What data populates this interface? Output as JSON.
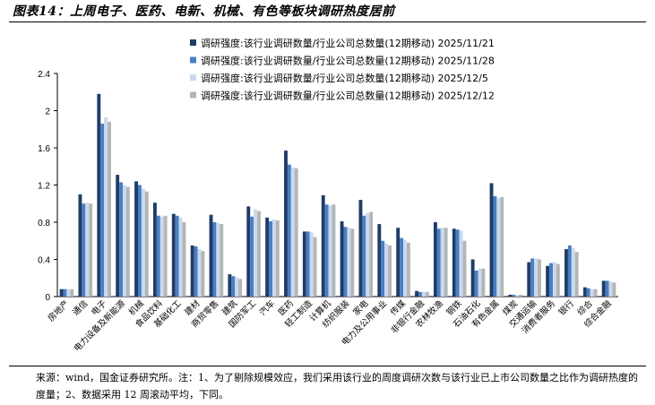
{
  "title": "图表14：上周电子、医药、电新、机械、有色等板块调研热度居前",
  "source": "来源：wind，国金证券研究所。注：1、为了剔除规模效应，我们采用该行业的周度调研次数与该行业已上市公司数量之比作为调研热度的度量；2、数据采用 12 周滚动平均，下同。",
  "chart_data": {
    "type": "bar",
    "ylim": [
      0,
      2.4
    ],
    "yticks": [
      "0",
      "0.4",
      "0.8",
      "1.2",
      "1.6",
      "2",
      "2.4"
    ],
    "legend_position": "top",
    "categories": [
      "房地产",
      "通信",
      "电子",
      "电力设备及新能源",
      "机械",
      "食品饮料",
      "基础化工",
      "建材",
      "商贸零售",
      "建筑",
      "国防军工",
      "汽车",
      "医药",
      "轻工制造",
      "计算机",
      "纺织服装",
      "家电",
      "电力及公用事业",
      "传媒",
      "非银行金融",
      "农林牧渔",
      "钢铁",
      "石油石化",
      "有色金属",
      "煤炭",
      "交通运输",
      "消费者服务",
      "银行",
      "综合",
      "综合金融"
    ],
    "series": [
      {
        "name": "调研强度:该行业调研数量/行业公司总数量(12期移动) 2025/11/21",
        "color": "#1f3d66",
        "values": [
          0.08,
          1.1,
          2.18,
          1.31,
          1.24,
          1.01,
          0.89,
          0.55,
          0.88,
          0.24,
          0.97,
          0.85,
          1.57,
          0.7,
          1.09,
          0.81,
          1.04,
          0.78,
          0.74,
          0.06,
          0.8,
          0.73,
          0.4,
          1.22,
          0.02,
          0.37,
          0.33,
          0.51,
          0.1,
          0.17
        ]
      },
      {
        "name": "调研强度:该行业调研数量/行业公司总数量(12期移动) 2025/11/28",
        "color": "#4a7ec2",
        "values": [
          0.08,
          1.0,
          1.86,
          1.23,
          1.2,
          0.87,
          0.87,
          0.54,
          0.8,
          0.22,
          0.86,
          0.81,
          1.42,
          0.7,
          0.99,
          0.75,
          0.87,
          0.6,
          0.63,
          0.05,
          0.73,
          0.72,
          0.28,
          1.08,
          0.02,
          0.41,
          0.36,
          0.55,
          0.09,
          0.17
        ]
      },
      {
        "name": "调研强度:该行业调研数量/行业公司总数量(12期移动) 2025/12/5",
        "color": "#c9daf0",
        "values": [
          0.08,
          1.01,
          1.93,
          1.2,
          1.16,
          0.86,
          0.85,
          0.51,
          0.79,
          0.21,
          0.94,
          0.83,
          1.39,
          0.69,
          0.98,
          0.74,
          0.9,
          0.57,
          0.61,
          0.05,
          0.74,
          0.71,
          0.3,
          1.06,
          0.02,
          0.41,
          0.37,
          0.52,
          0.08,
          0.16
        ]
      },
      {
        "name": "调研强度:该行业调研数量/行业公司总数量(12期移动) 2025/12/12",
        "color": "#b5b5b5",
        "values": [
          0.08,
          1.0,
          1.88,
          1.18,
          1.13,
          0.87,
          0.8,
          0.49,
          0.78,
          0.19,
          0.92,
          0.82,
          1.38,
          0.64,
          0.99,
          0.73,
          0.91,
          0.55,
          0.58,
          0.05,
          0.74,
          0.6,
          0.3,
          1.07,
          0.02,
          0.4,
          0.35,
          0.48,
          0.08,
          0.15
        ]
      }
    ]
  }
}
